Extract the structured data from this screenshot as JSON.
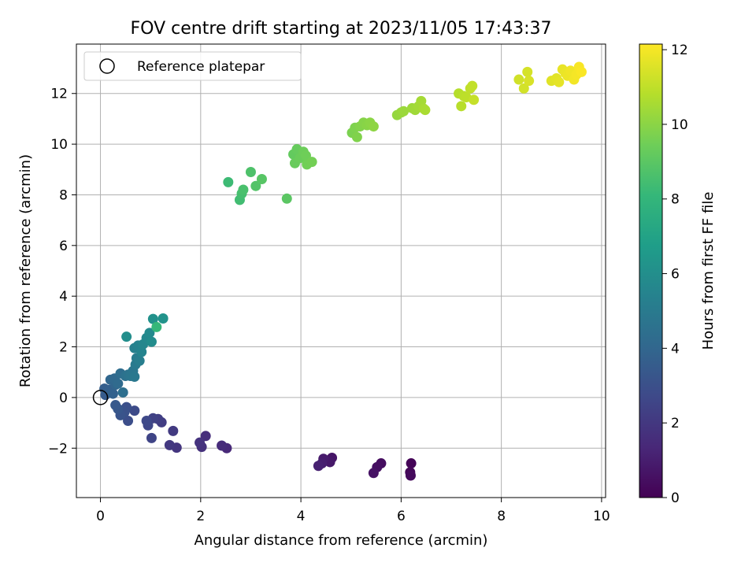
{
  "chart_data": {
    "type": "scatter",
    "title": "FOV centre drift starting at 2023/11/05 17:43:37",
    "xlabel": "Angular distance from reference (arcmin)",
    "ylabel": "Rotation from reference (arcmin)",
    "xlim": [
      -0.48,
      10.08
    ],
    "ylim": [
      -3.95,
      13.95
    ],
    "xticks": [
      0,
      2,
      4,
      6,
      8,
      10
    ],
    "yticks": [
      -2,
      0,
      2,
      4,
      6,
      8,
      10,
      12
    ],
    "grid": true,
    "legend": {
      "position": "top-left",
      "entries": [
        "Reference platepar"
      ]
    },
    "reference_point": {
      "x": 0,
      "y": 0,
      "label": "Reference platepar"
    },
    "colorbar": {
      "label": "Hours from first FF file",
      "range": [
        0,
        12.15
      ],
      "ticks": [
        0,
        2,
        4,
        6,
        8,
        10,
        12
      ],
      "colormap": "viridis"
    },
    "colormap_stops": [
      "#440154",
      "#482878",
      "#3e4989",
      "#31688e",
      "#26828e",
      "#1f9e89",
      "#35b779",
      "#6ece58",
      "#b5de2b",
      "#fde725"
    ],
    "points": [
      {
        "x": 6.2,
        "y": -2.6,
        "h": 0.1
      },
      {
        "x": 6.18,
        "y": -2.95,
        "h": 0.2
      },
      {
        "x": 6.19,
        "y": -3.08,
        "h": 0.3
      },
      {
        "x": 5.6,
        "y": -2.6,
        "h": 0.4
      },
      {
        "x": 5.52,
        "y": -2.75,
        "h": 0.5
      },
      {
        "x": 5.45,
        "y": -2.98,
        "h": 0.6
      },
      {
        "x": 4.62,
        "y": -2.38,
        "h": 0.7
      },
      {
        "x": 4.58,
        "y": -2.55,
        "h": 0.8
      },
      {
        "x": 4.45,
        "y": -2.42,
        "h": 0.9
      },
      {
        "x": 4.42,
        "y": -2.6,
        "h": 1.0
      },
      {
        "x": 4.35,
        "y": -2.7,
        "h": 1.1
      },
      {
        "x": 2.52,
        "y": -2.0,
        "h": 1.4
      },
      {
        "x": 2.42,
        "y": -1.9,
        "h": 1.5
      },
      {
        "x": 2.1,
        "y": -1.52,
        "h": 1.6
      },
      {
        "x": 2.02,
        "y": -1.95,
        "h": 1.7
      },
      {
        "x": 1.98,
        "y": -1.78,
        "h": 1.8
      },
      {
        "x": 1.52,
        "y": -1.98,
        "h": 1.9
      },
      {
        "x": 1.38,
        "y": -1.88,
        "h": 2.0
      },
      {
        "x": 1.45,
        "y": -1.32,
        "h": 2.1
      },
      {
        "x": 1.22,
        "y": -0.98,
        "h": 2.2
      },
      {
        "x": 1.15,
        "y": -0.85,
        "h": 2.3
      },
      {
        "x": 1.05,
        "y": -0.82,
        "h": 2.4
      },
      {
        "x": 1.02,
        "y": -1.6,
        "h": 2.5
      },
      {
        "x": 0.95,
        "y": -1.1,
        "h": 2.6
      },
      {
        "x": 0.92,
        "y": -0.92,
        "h": 2.7
      },
      {
        "x": 0.68,
        "y": -0.52,
        "h": 2.8
      },
      {
        "x": 0.55,
        "y": -0.92,
        "h": 2.9
      },
      {
        "x": 0.52,
        "y": -0.38,
        "h": 3.0
      },
      {
        "x": 0.48,
        "y": -0.58,
        "h": 3.1
      },
      {
        "x": 0.4,
        "y": -0.7,
        "h": 3.2
      },
      {
        "x": 0.35,
        "y": -0.45,
        "h": 3.3
      },
      {
        "x": 0.3,
        "y": -0.3,
        "h": 3.4
      },
      {
        "x": 0.1,
        "y": 0.1,
        "h": 3.5
      },
      {
        "x": 0.08,
        "y": 0.35,
        "h": 3.6
      },
      {
        "x": 0.18,
        "y": 0.3,
        "h": 3.7
      },
      {
        "x": 0.25,
        "y": 0.15,
        "h": 3.8
      },
      {
        "x": 0.3,
        "y": 0.5,
        "h": 3.9
      },
      {
        "x": 0.2,
        "y": 0.7,
        "h": 4.0
      },
      {
        "x": 0.28,
        "y": 0.75,
        "h": 4.1
      },
      {
        "x": 0.35,
        "y": 0.55,
        "h": 4.2
      },
      {
        "x": 0.4,
        "y": 0.95,
        "h": 4.3
      },
      {
        "x": 0.45,
        "y": 0.2,
        "h": 4.4
      },
      {
        "x": 0.5,
        "y": 0.85,
        "h": 4.5
      },
      {
        "x": 0.55,
        "y": 0.9,
        "h": 4.6
      },
      {
        "x": 0.6,
        "y": 0.85,
        "h": 4.7
      },
      {
        "x": 0.65,
        "y": 1.05,
        "h": 4.8
      },
      {
        "x": 0.68,
        "y": 0.82,
        "h": 4.9
      },
      {
        "x": 0.7,
        "y": 1.3,
        "h": 5.0
      },
      {
        "x": 0.72,
        "y": 1.55,
        "h": 5.1
      },
      {
        "x": 0.78,
        "y": 1.45,
        "h": 5.2
      },
      {
        "x": 0.68,
        "y": 1.95,
        "h": 5.3
      },
      {
        "x": 0.75,
        "y": 2.05,
        "h": 5.4
      },
      {
        "x": 0.82,
        "y": 1.8,
        "h": 5.5
      },
      {
        "x": 0.85,
        "y": 2.1,
        "h": 5.6
      },
      {
        "x": 0.92,
        "y": 2.35,
        "h": 5.7
      },
      {
        "x": 0.98,
        "y": 2.55,
        "h": 5.8
      },
      {
        "x": 1.02,
        "y": 2.2,
        "h": 5.9
      },
      {
        "x": 0.52,
        "y": 2.4,
        "h": 6.0
      },
      {
        "x": 1.05,
        "y": 3.1,
        "h": 6.1
      },
      {
        "x": 1.25,
        "y": 3.12,
        "h": 6.2
      },
      {
        "x": 1.12,
        "y": 2.78,
        "h": 8.1
      },
      {
        "x": 2.55,
        "y": 8.5,
        "h": 8.3
      },
      {
        "x": 2.78,
        "y": 7.8,
        "h": 8.4
      },
      {
        "x": 2.82,
        "y": 8.05,
        "h": 8.5
      },
      {
        "x": 2.85,
        "y": 8.2,
        "h": 8.6
      },
      {
        "x": 3.0,
        "y": 8.9,
        "h": 8.7
      },
      {
        "x": 3.1,
        "y": 8.35,
        "h": 8.8
      },
      {
        "x": 3.22,
        "y": 8.62,
        "h": 8.9
      },
      {
        "x": 3.72,
        "y": 7.85,
        "h": 9.0
      },
      {
        "x": 3.85,
        "y": 9.6,
        "h": 9.2
      },
      {
        "x": 3.92,
        "y": 9.8,
        "h": 9.25
      },
      {
        "x": 3.88,
        "y": 9.25,
        "h": 9.3
      },
      {
        "x": 3.98,
        "y": 9.45,
        "h": 9.35
      },
      {
        "x": 4.05,
        "y": 9.7,
        "h": 9.4
      },
      {
        "x": 4.1,
        "y": 9.55,
        "h": 9.45
      },
      {
        "x": 4.12,
        "y": 9.2,
        "h": 9.5
      },
      {
        "x": 4.22,
        "y": 9.3,
        "h": 9.55
      },
      {
        "x": 5.02,
        "y": 10.45,
        "h": 9.7
      },
      {
        "x": 5.08,
        "y": 10.65,
        "h": 9.75
      },
      {
        "x": 5.12,
        "y": 10.28,
        "h": 9.8
      },
      {
        "x": 5.18,
        "y": 10.7,
        "h": 9.85
      },
      {
        "x": 5.25,
        "y": 10.85,
        "h": 9.9
      },
      {
        "x": 5.32,
        "y": 10.75,
        "h": 9.95
      },
      {
        "x": 5.38,
        "y": 10.85,
        "h": 10.0
      },
      {
        "x": 5.45,
        "y": 10.7,
        "h": 10.05
      },
      {
        "x": 5.92,
        "y": 11.15,
        "h": 10.2
      },
      {
        "x": 6.0,
        "y": 11.25,
        "h": 10.25
      },
      {
        "x": 6.05,
        "y": 11.3,
        "h": 10.3
      },
      {
        "x": 6.22,
        "y": 11.42,
        "h": 10.35
      },
      {
        "x": 6.28,
        "y": 11.35,
        "h": 10.4
      },
      {
        "x": 6.35,
        "y": 11.5,
        "h": 10.45
      },
      {
        "x": 6.4,
        "y": 11.7,
        "h": 10.5
      },
      {
        "x": 6.45,
        "y": 11.4,
        "h": 10.55
      },
      {
        "x": 6.48,
        "y": 11.35,
        "h": 10.6
      },
      {
        "x": 7.15,
        "y": 12.0,
        "h": 10.8
      },
      {
        "x": 7.2,
        "y": 11.5,
        "h": 10.85
      },
      {
        "x": 7.25,
        "y": 11.9,
        "h": 10.9
      },
      {
        "x": 7.3,
        "y": 11.85,
        "h": 10.95
      },
      {
        "x": 7.38,
        "y": 12.2,
        "h": 11.0
      },
      {
        "x": 7.42,
        "y": 12.3,
        "h": 11.05
      },
      {
        "x": 7.45,
        "y": 11.75,
        "h": 11.1
      },
      {
        "x": 8.35,
        "y": 12.55,
        "h": 11.3
      },
      {
        "x": 8.45,
        "y": 12.2,
        "h": 11.35
      },
      {
        "x": 8.52,
        "y": 12.85,
        "h": 11.4
      },
      {
        "x": 8.55,
        "y": 12.5,
        "h": 11.45
      },
      {
        "x": 9.0,
        "y": 12.5,
        "h": 11.6
      },
      {
        "x": 9.1,
        "y": 12.6,
        "h": 11.65
      },
      {
        "x": 9.15,
        "y": 12.45,
        "h": 11.7
      },
      {
        "x": 9.22,
        "y": 12.95,
        "h": 11.75
      },
      {
        "x": 9.28,
        "y": 12.8,
        "h": 11.8
      },
      {
        "x": 9.32,
        "y": 12.7,
        "h": 11.85
      },
      {
        "x": 9.38,
        "y": 12.9,
        "h": 11.9
      },
      {
        "x": 9.45,
        "y": 12.55,
        "h": 11.95
      },
      {
        "x": 9.5,
        "y": 12.75,
        "h": 12.0
      },
      {
        "x": 9.55,
        "y": 13.05,
        "h": 12.05
      },
      {
        "x": 9.6,
        "y": 12.85,
        "h": 12.1
      }
    ]
  }
}
